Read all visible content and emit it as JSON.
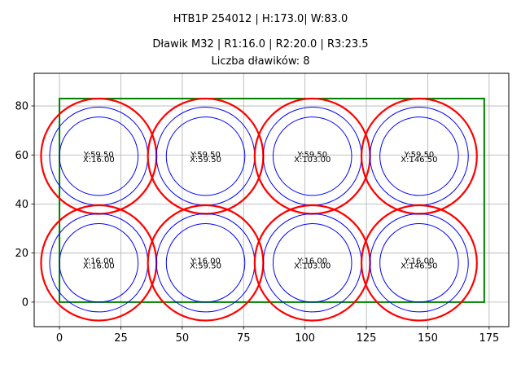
{
  "title": {
    "line1": "HTB1P 254012 | H:173.0| W:83.0",
    "line2": "Dławik M32 | R1:16.0 | R2:20.0 | R3:23.5",
    "line3": "Liczba dławików: 8"
  },
  "colors": {
    "enclosure": "#008000",
    "outer_circle": "#ff0000",
    "inner_circles": "#0000ff",
    "grid": "#b0b0b0",
    "axes": "#000000"
  },
  "chart_data": {
    "type": "scatter",
    "title": "HTB1P 254012 | H:173.0| W:83.0 / Dławik M32 | R1:16.0 | R2:20.0 | R3:23.5 / Liczba dławików: 8",
    "xlabel": "",
    "ylabel": "",
    "xlim": [
      -10.3,
      183.0
    ],
    "ylim": [
      -10.0,
      93.3
    ],
    "xticks": [
      0,
      25,
      50,
      75,
      100,
      125,
      150,
      175
    ],
    "yticks": [
      0,
      20,
      40,
      60,
      80
    ],
    "grid": true,
    "legend": null,
    "enclosure_rect": {
      "x": 0,
      "y": 0,
      "width": 173.0,
      "height": 83.0
    },
    "radii": {
      "R1": 16.0,
      "R2": 20.0,
      "R3": 23.5
    },
    "glands": [
      {
        "x": 16.0,
        "y": 59.5,
        "label_y": "Y:59.50",
        "label_x": "X:16.00"
      },
      {
        "x": 59.5,
        "y": 59.5,
        "label_y": "Y:59.50",
        "label_x": "X:59.50"
      },
      {
        "x": 103.0,
        "y": 59.5,
        "label_y": "Y:59.50",
        "label_x": "X:103.00"
      },
      {
        "x": 146.5,
        "y": 59.5,
        "label_y": "Y:59.50",
        "label_x": "X:146.50"
      },
      {
        "x": 16.0,
        "y": 16.0,
        "label_y": "Y:16.00",
        "label_x": "X:16.00"
      },
      {
        "x": 59.5,
        "y": 16.0,
        "label_y": "Y:16.00",
        "label_x": "X:59.50"
      },
      {
        "x": 103.0,
        "y": 16.0,
        "label_y": "Y:16.00",
        "label_x": "X:103.00"
      },
      {
        "x": 146.5,
        "y": 16.0,
        "label_y": "Y:16.00",
        "label_x": "X:146.50"
      }
    ]
  }
}
